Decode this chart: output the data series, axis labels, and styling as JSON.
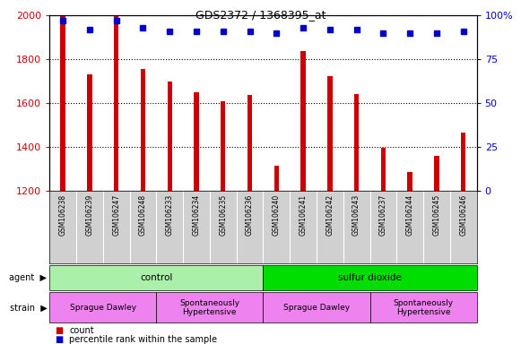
{
  "title": "GDS2372 / 1368395_at",
  "samples": [
    "GSM106238",
    "GSM106239",
    "GSM106247",
    "GSM106248",
    "GSM106233",
    "GSM106234",
    "GSM106235",
    "GSM106236",
    "GSM106240",
    "GSM106241",
    "GSM106242",
    "GSM106243",
    "GSM106237",
    "GSM106244",
    "GSM106245",
    "GSM106246"
  ],
  "counts": [
    2000,
    1730,
    2000,
    1755,
    1700,
    1648,
    1608,
    1638,
    1315,
    1838,
    1722,
    1640,
    1395,
    1285,
    1358,
    1465
  ],
  "percentiles": [
    97,
    92,
    97,
    93,
    91,
    91,
    91,
    91,
    90,
    93,
    92,
    92,
    90,
    90,
    90,
    91
  ],
  "ylim_left": [
    1200,
    2000
  ],
  "ylim_right": [
    0,
    100
  ],
  "yticks_left": [
    1200,
    1400,
    1600,
    1800,
    2000
  ],
  "yticks_right": [
    0,
    25,
    50,
    75,
    100
  ],
  "bar_color": "#cc0000",
  "dot_color": "#0000cc",
  "bg_color": "#d0d0d0",
  "agent_groups": [
    {
      "label": "control",
      "start": 0,
      "end": 8,
      "color": "#aaf0aa"
    },
    {
      "label": "sulfur dioxide",
      "start": 8,
      "end": 16,
      "color": "#00dd00"
    }
  ],
  "strain_groups": [
    {
      "label": "Sprague Dawley",
      "start": 0,
      "end": 4,
      "color": "#ee82ee"
    },
    {
      "label": "Spontaneously\nHypertensive",
      "start": 4,
      "end": 8,
      "color": "#ee82ee"
    },
    {
      "label": "Sprague Dawley",
      "start": 8,
      "end": 12,
      "color": "#ee82ee"
    },
    {
      "label": "Spontaneously\nHypertensive",
      "start": 12,
      "end": 16,
      "color": "#ee82ee"
    }
  ]
}
